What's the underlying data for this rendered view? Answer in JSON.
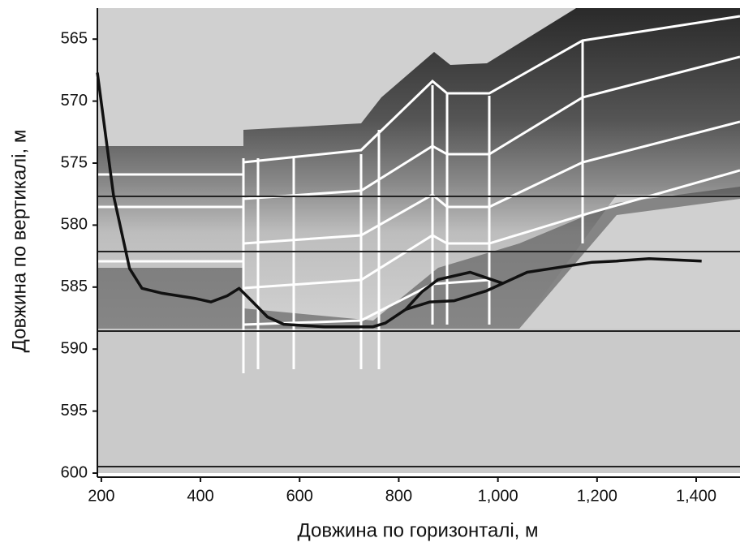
{
  "chart_data": {
    "type": "line",
    "x_label": "Довжина по горизонталі, м",
    "y_label": "Довжина по вертикалі, м",
    "xlim": [
      192,
      1490
    ],
    "ylim": [
      562.5,
      600
    ],
    "y_inverted": true,
    "xticks": [
      200,
      400,
      600,
      800,
      {
        "value": 1000,
        "label": "1,000"
      },
      {
        "value": 1200,
        "label": "1,200"
      },
      {
        "value": 1400,
        "label": "1,400"
      }
    ],
    "yticks": [
      565,
      570,
      575,
      580,
      585,
      590,
      595,
      600
    ],
    "series": [
      {
        "color": "#111111",
        "x": [
          192,
          224.5,
          257,
          282,
          323,
          388,
          421,
          454,
          478,
          503,
          535,
          568,
          650,
          748,
          773,
          814,
          863,
          912,
          977,
          1059,
          1141,
          1190,
          1239,
          1305,
          1411
        ],
        "values": [
          567.7,
          577.6,
          583.5,
          585.1,
          585.5,
          585.9,
          586.2,
          585.7,
          585.1,
          586.1,
          587.4,
          588.0,
          588.2,
          588.2,
          587.9,
          586.8,
          586.2,
          586.1,
          585.3,
          583.8,
          583.3,
          583.0,
          582.9,
          582.7,
          582.9
        ]
      },
      {
        "color": "#111111",
        "x": [
          814,
          846,
          879,
          944,
          1010
        ],
        "values": [
          586.8,
          585.4,
          584.4,
          583.8,
          584.7
        ]
      }
    ]
  }
}
